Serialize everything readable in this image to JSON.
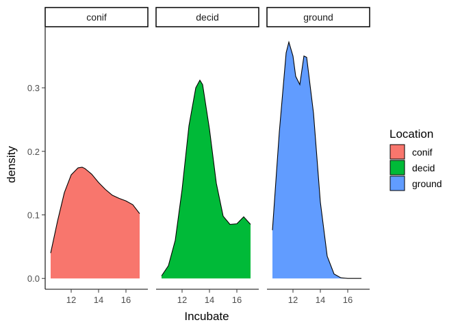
{
  "chart_data": {
    "type": "area",
    "subtype": "density-facets",
    "xlabel": "Incubate",
    "ylabel": "density",
    "xlim": [
      10.1,
      17.6
    ],
    "ylim": [
      -0.017,
      0.395
    ],
    "x_ticks": [
      12,
      14,
      16
    ],
    "y_ticks": [
      0.0,
      0.1,
      0.2,
      0.3
    ],
    "y_tick_labels": [
      "0.0",
      "0.1",
      "0.2",
      "0.3"
    ],
    "grid": false,
    "legend": {
      "title": "Location",
      "placement": "right",
      "entries": [
        {
          "label": "conif",
          "color": "#F8766D"
        },
        {
          "label": "decid",
          "color": "#00BA38"
        },
        {
          "label": "ground",
          "color": "#619CFF"
        }
      ]
    },
    "facets": [
      {
        "label": "conif",
        "color": "#F8766D",
        "x": [
          10.5,
          11.0,
          11.5,
          12.0,
          12.5,
          12.8,
          13.0,
          13.5,
          14.0,
          14.5,
          15.0,
          15.5,
          16.0,
          16.5,
          17.0
        ],
        "y": [
          0.04,
          0.09,
          0.135,
          0.163,
          0.174,
          0.175,
          0.173,
          0.164,
          0.151,
          0.14,
          0.131,
          0.126,
          0.122,
          0.116,
          0.102
        ]
      },
      {
        "label": "decid",
        "color": "#00BA38",
        "x": [
          10.5,
          11.0,
          11.5,
          12.0,
          12.5,
          13.0,
          13.3,
          13.5,
          14.0,
          14.5,
          15.0,
          15.5,
          16.0,
          16.5,
          17.0
        ],
        "y": [
          0.004,
          0.02,
          0.06,
          0.14,
          0.24,
          0.3,
          0.312,
          0.305,
          0.235,
          0.15,
          0.098,
          0.085,
          0.086,
          0.097,
          0.085
        ]
      },
      {
        "label": "ground",
        "color": "#619CFF",
        "x": [
          10.5,
          11.0,
          11.5,
          11.7,
          12.0,
          12.2,
          12.5,
          12.8,
          13.0,
          13.5,
          14.0,
          14.5,
          15.0,
          15.5,
          16.0,
          16.5,
          17.0
        ],
        "y": [
          0.076,
          0.23,
          0.355,
          0.372,
          0.35,
          0.318,
          0.305,
          0.35,
          0.348,
          0.26,
          0.12,
          0.035,
          0.007,
          0.001,
          0.0,
          0.0,
          0.0
        ]
      }
    ]
  }
}
